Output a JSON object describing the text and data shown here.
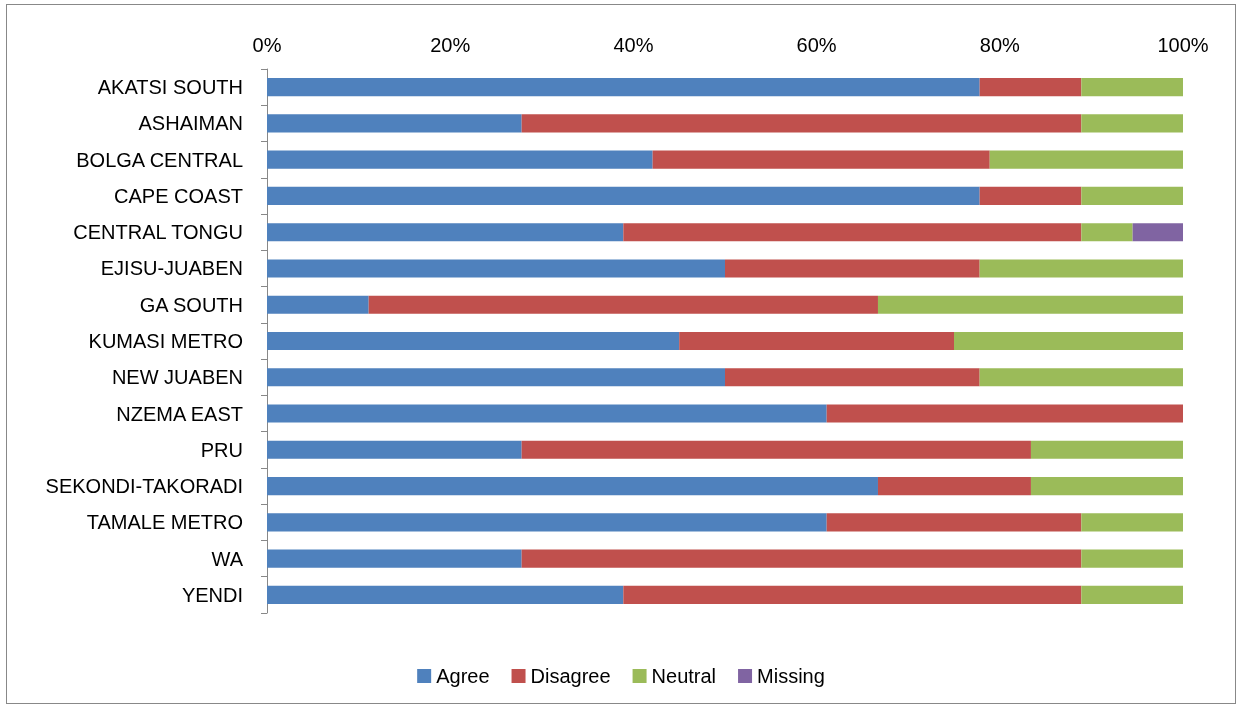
{
  "chart_data": {
    "type": "bar",
    "orientation": "horizontal",
    "stacked": true,
    "categories": [
      "AKATSI SOUTH",
      "ASHAIMAN",
      "BOLGA CENTRAL",
      "CAPE COAST",
      "CENTRAL TONGU",
      "EJISU-JUABEN",
      "GA SOUTH",
      "KUMASI METRO",
      "NEW JUABEN",
      "NZEMA EAST",
      "PRU",
      "SEKONDI-TAKORADI",
      "TAMALE METRO",
      "WA",
      "YENDI"
    ],
    "series": [
      {
        "name": "Agree",
        "color": "#4f81bd",
        "values": [
          77.8,
          27.8,
          42.1,
          77.8,
          38.9,
          50,
          11.1,
          45,
          50,
          61.1,
          27.8,
          66.7,
          61.1,
          27.8,
          38.9
        ]
      },
      {
        "name": "Disagree",
        "color": "#c0504d",
        "values": [
          11.1,
          61.1,
          36.8,
          11.1,
          50,
          27.8,
          55.6,
          30,
          27.8,
          38.9,
          55.6,
          16.7,
          27.8,
          61.1,
          50
        ]
      },
      {
        "name": "Neutral",
        "color": "#9bbb59",
        "values": [
          11.1,
          11.1,
          21.1,
          11.1,
          5.6,
          22.2,
          33.3,
          25,
          22.2,
          null,
          16.7,
          16.7,
          11.1,
          11.1,
          11.1
        ]
      },
      {
        "name": "Missing",
        "color": "#8064a2",
        "values": [
          null,
          null,
          null,
          null,
          5.6,
          null,
          null,
          null,
          null,
          null,
          null,
          null,
          null,
          null,
          null
        ]
      }
    ],
    "xlim": [
      0,
      100
    ],
    "xticks": [
      {
        "value": 0,
        "label": "0%"
      },
      {
        "value": 20,
        "label": "20%"
      },
      {
        "value": 40,
        "label": "40%"
      },
      {
        "value": 60,
        "label": "60%"
      },
      {
        "value": 80,
        "label": "80%"
      },
      {
        "value": 100,
        "label": "100%"
      }
    ],
    "grid": false,
    "legend": "bottom"
  }
}
